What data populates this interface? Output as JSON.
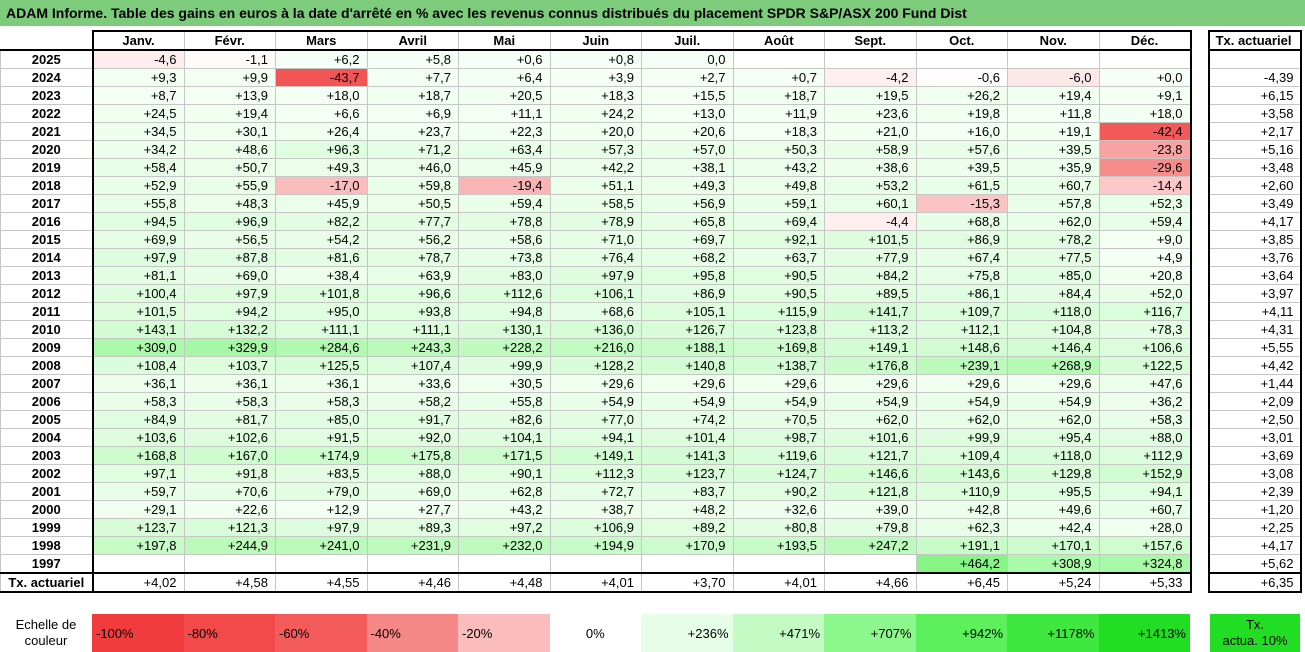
{
  "title": "ADAM Informe. Table des gains en euros à la date d'arrêté en % avec les revenus connus distribués du placement SPDR S&P/ASX 200 Fund Dist",
  "months": [
    "Janv.",
    "Févr.",
    "Mars",
    "Avril",
    "Mai",
    "Juin",
    "Juil.",
    "Août",
    "Sept.",
    "Oct.",
    "Nov.",
    "Déc."
  ],
  "tx_header": "Tx. actuariel",
  "rows": [
    {
      "year": "2025",
      "values": [
        "-4,6",
        "-1,1",
        "+6,2",
        "+5,8",
        "+0,6",
        "+0,8",
        "0,0",
        "",
        "",
        "",
        "",
        ""
      ],
      "tx": ""
    },
    {
      "year": "2024",
      "values": [
        "+9,3",
        "+9,9",
        "-43,7",
        "+7,7",
        "+6,4",
        "+3,9",
        "+2,7",
        "+0,7",
        "-4,2",
        "-0,6",
        "-6,0",
        "+0,0"
      ],
      "tx": "-4,39"
    },
    {
      "year": "2023",
      "values": [
        "+8,7",
        "+13,9",
        "+18,0",
        "+18,7",
        "+20,5",
        "+18,3",
        "+15,5",
        "+18,7",
        "+19,5",
        "+26,2",
        "+19,4",
        "+9,1"
      ],
      "tx": "+6,15"
    },
    {
      "year": "2022",
      "values": [
        "+24,5",
        "+19,4",
        "+6,6",
        "+6,9",
        "+11,1",
        "+24,2",
        "+13,0",
        "+11,9",
        "+23,6",
        "+19,8",
        "+11,8",
        "+18,0"
      ],
      "tx": "+3,58"
    },
    {
      "year": "2021",
      "values": [
        "+34,5",
        "+30,1",
        "+26,4",
        "+23,7",
        "+22,3",
        "+20,0",
        "+20,6",
        "+18,3",
        "+21,0",
        "+16,0",
        "+19,1",
        "-42,4"
      ],
      "tx": "+2,17"
    },
    {
      "year": "2020",
      "values": [
        "+34,2",
        "+48,6",
        "+96,3",
        "+71,2",
        "+63,4",
        "+57,3",
        "+57,0",
        "+50,3",
        "+58,9",
        "+57,6",
        "+39,5",
        "-23,8"
      ],
      "tx": "+5,16"
    },
    {
      "year": "2019",
      "values": [
        "+58,4",
        "+50,7",
        "+49,3",
        "+46,0",
        "+45,9",
        "+42,2",
        "+38,1",
        "+43,2",
        "+38,6",
        "+39,5",
        "+35,9",
        "-29,6"
      ],
      "tx": "+3,48"
    },
    {
      "year": "2018",
      "values": [
        "+52,9",
        "+55,9",
        "-17,0",
        "+59,8",
        "-19,4",
        "+51,1",
        "+49,3",
        "+49,8",
        "+53,2",
        "+61,5",
        "+60,7",
        "-14,4"
      ],
      "tx": "+2,60"
    },
    {
      "year": "2017",
      "values": [
        "+55,8",
        "+48,3",
        "+45,9",
        "+50,5",
        "+59,4",
        "+58,5",
        "+56,9",
        "+59,1",
        "+60,1",
        "-15,3",
        "+57,8",
        "+52,3"
      ],
      "tx": "+3,49"
    },
    {
      "year": "2016",
      "values": [
        "+94,5",
        "+96,9",
        "+82,2",
        "+77,7",
        "+78,8",
        "+78,9",
        "+65,8",
        "+69,4",
        "-4,4",
        "+68,8",
        "+62,0",
        "+59,4"
      ],
      "tx": "+4,17"
    },
    {
      "year": "2015",
      "values": [
        "+69,9",
        "+56,5",
        "+54,2",
        "+56,2",
        "+58,6",
        "+71,0",
        "+69,7",
        "+92,1",
        "+101,5",
        "+86,9",
        "+78,2",
        "+9,0"
      ],
      "tx": "+3,85"
    },
    {
      "year": "2014",
      "values": [
        "+97,9",
        "+87,8",
        "+81,6",
        "+78,7",
        "+73,8",
        "+76,4",
        "+68,2",
        "+63,7",
        "+77,9",
        "+67,4",
        "+77,5",
        "+4,9"
      ],
      "tx": "+3,76"
    },
    {
      "year": "2013",
      "values": [
        "+81,1",
        "+69,0",
        "+38,4",
        "+63,9",
        "+83,0",
        "+97,9",
        "+95,8",
        "+90,5",
        "+84,2",
        "+75,8",
        "+85,0",
        "+20,8"
      ],
      "tx": "+3,64"
    },
    {
      "year": "2012",
      "values": [
        "+100,4",
        "+97,9",
        "+101,8",
        "+96,6",
        "+112,6",
        "+106,1",
        "+86,9",
        "+90,5",
        "+89,5",
        "+86,1",
        "+84,4",
        "+52,0"
      ],
      "tx": "+3,97"
    },
    {
      "year": "2011",
      "values": [
        "+101,5",
        "+94,2",
        "+95,0",
        "+93,8",
        "+94,8",
        "+68,6",
        "+105,1",
        "+115,9",
        "+141,7",
        "+109,7",
        "+118,0",
        "+116,7"
      ],
      "tx": "+4,11"
    },
    {
      "year": "2010",
      "values": [
        "+143,1",
        "+132,2",
        "+111,1",
        "+111,1",
        "+130,1",
        "+136,0",
        "+126,7",
        "+123,8",
        "+113,2",
        "+112,1",
        "+104,8",
        "+78,3"
      ],
      "tx": "+4,31"
    },
    {
      "year": "2009",
      "values": [
        "+309,0",
        "+329,9",
        "+284,6",
        "+243,3",
        "+228,2",
        "+216,0",
        "+188,1",
        "+169,8",
        "+149,1",
        "+148,6",
        "+146,4",
        "+106,6"
      ],
      "tx": "+5,55"
    },
    {
      "year": "2008",
      "values": [
        "+108,4",
        "+103,7",
        "+125,5",
        "+107,4",
        "+99,9",
        "+128,2",
        "+140,8",
        "+138,7",
        "+176,8",
        "+239,1",
        "+268,9",
        "+122,5"
      ],
      "tx": "+4,42"
    },
    {
      "year": "2007",
      "values": [
        "+36,1",
        "+36,1",
        "+36,1",
        "+33,6",
        "+30,5",
        "+29,6",
        "+29,6",
        "+29,6",
        "+29,6",
        "+29,6",
        "+29,6",
        "+47,6"
      ],
      "tx": "+1,44"
    },
    {
      "year": "2006",
      "values": [
        "+58,3",
        "+58,3",
        "+58,3",
        "+58,2",
        "+55,8",
        "+54,9",
        "+54,9",
        "+54,9",
        "+54,9",
        "+54,9",
        "+54,9",
        "+36,2"
      ],
      "tx": "+2,09"
    },
    {
      "year": "2005",
      "values": [
        "+84,9",
        "+81,7",
        "+85,0",
        "+91,7",
        "+82,6",
        "+77,0",
        "+74,2",
        "+70,5",
        "+62,0",
        "+62,0",
        "+62,0",
        "+58,3"
      ],
      "tx": "+2,50"
    },
    {
      "year": "2004",
      "values": [
        "+103,6",
        "+102,6",
        "+91,5",
        "+92,0",
        "+104,1",
        "+94,1",
        "+101,4",
        "+98,7",
        "+101,6",
        "+99,9",
        "+95,4",
        "+88,0"
      ],
      "tx": "+3,01"
    },
    {
      "year": "2003",
      "values": [
        "+168,8",
        "+167,0",
        "+174,9",
        "+175,8",
        "+171,5",
        "+149,1",
        "+141,3",
        "+119,6",
        "+121,7",
        "+109,4",
        "+118,0",
        "+112,9"
      ],
      "tx": "+3,69"
    },
    {
      "year": "2002",
      "values": [
        "+97,1",
        "+91,8",
        "+83,5",
        "+88,0",
        "+90,1",
        "+112,3",
        "+123,7",
        "+124,7",
        "+146,6",
        "+143,6",
        "+129,8",
        "+152,9"
      ],
      "tx": "+3,08"
    },
    {
      "year": "2001",
      "values": [
        "+59,7",
        "+70,6",
        "+79,0",
        "+69,0",
        "+62,8",
        "+72,7",
        "+83,7",
        "+90,2",
        "+121,8",
        "+110,9",
        "+95,5",
        "+94,1"
      ],
      "tx": "+2,39"
    },
    {
      "year": "2000",
      "values": [
        "+29,1",
        "+22,6",
        "+12,9",
        "+27,7",
        "+43,2",
        "+38,7",
        "+48,2",
        "+32,6",
        "+39,0",
        "+42,8",
        "+49,6",
        "+60,7"
      ],
      "tx": "+1,20"
    },
    {
      "year": "1999",
      "values": [
        "+123,7",
        "+121,3",
        "+97,9",
        "+89,3",
        "+97,2",
        "+106,9",
        "+89,2",
        "+80,8",
        "+79,8",
        "+62,3",
        "+42,4",
        "+28,0"
      ],
      "tx": "+2,25"
    },
    {
      "year": "1998",
      "values": [
        "+197,8",
        "+244,9",
        "+241,0",
        "+231,9",
        "+232,0",
        "+194,9",
        "+170,9",
        "+193,5",
        "+247,2",
        "+191,1",
        "+170,1",
        "+157,6"
      ],
      "tx": "+4,17"
    },
    {
      "year": "1997",
      "values": [
        "",
        "",
        "",
        "",
        "",
        "",
        "",
        "",
        "",
        "+464,2",
        "+308,9",
        "+324,8"
      ],
      "tx": "+5,62"
    }
  ],
  "avg_row": {
    "label": "Tx. actuariel",
    "values": [
      "+4,02",
      "+4,58",
      "+4,55",
      "+4,46",
      "+4,48",
      "+4,01",
      "+3,70",
      "+4,01",
      "+4,66",
      "+6,45",
      "+5,24",
      "+5,33"
    ],
    "tx": "+6,35"
  },
  "scale": {
    "label_line1": "Echelle de",
    "label_line2": "couleur",
    "items": [
      {
        "label": "-100%",
        "color": "#f03c3c",
        "align": "left"
      },
      {
        "label": "-80%",
        "color": "#f24a4a",
        "align": "left"
      },
      {
        "label": "-60%",
        "color": "#f45c5c",
        "align": "left"
      },
      {
        "label": "-40%",
        "color": "#f78888",
        "align": "left"
      },
      {
        "label": "-20%",
        "color": "#fbbcbc",
        "align": "left"
      },
      {
        "label": "0%",
        "color": "#ffffff",
        "align": "center"
      },
      {
        "label": "+236%",
        "color": "#e6fde6",
        "align": "right"
      },
      {
        "label": "+471%",
        "color": "#c4fbc4",
        "align": "right"
      },
      {
        "label": "+707%",
        "color": "#8cf78c",
        "align": "right"
      },
      {
        "label": "+942%",
        "color": "#5cf05c",
        "align": "right"
      },
      {
        "label": "+1178%",
        "color": "#3ee83e",
        "align": "right"
      },
      {
        "label": "+1413%",
        "color": "#22de22",
        "align": "right"
      }
    ],
    "tx_line1": "Tx.",
    "tx_line2": "actua. 10%",
    "tx_color": "#22de22"
  }
}
